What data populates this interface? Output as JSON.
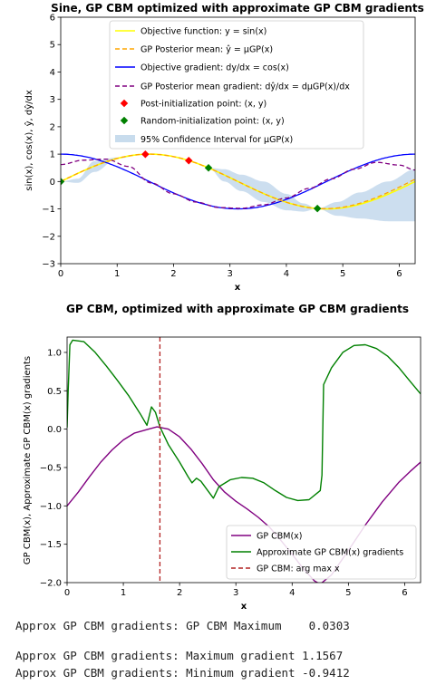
{
  "chart_data": [
    {
      "type": "line",
      "title": "Sine, GP CBM optimized with approximate GP CBM gradients",
      "xlabel": "x",
      "ylabel": "sin(x), cos(x), ŷ, dŷ/dx",
      "xlim": [
        0,
        6.283
      ],
      "ylim": [
        -3,
        6
      ],
      "xticks": [
        "0",
        "1",
        "2",
        "3",
        "4",
        "5",
        "6"
      ],
      "yticks": [
        "−3",
        "−2",
        "−1",
        "0",
        "1",
        "2",
        "3",
        "4",
        "5",
        "6"
      ],
      "legend_position": "top-center",
      "legend": [
        "Objective function: y = sin(x)",
        "GP Posterior mean: ŷ = μGP(x)",
        "Objective gradient: dy/dx = cos(x)",
        "GP Posterior mean gradient: dŷ/dx = dμGP(x)/dx",
        "Post-initialization point: (x, y)",
        "Random-initialization point: (x, y)",
        "95% Confidence Interval for μGP(x)"
      ],
      "post_init_points": [
        [
          1.5,
          0.997
        ],
        [
          2.27,
          0.765
        ]
      ],
      "random_init_points": [
        [
          0.0,
          0.0
        ],
        [
          2.62,
          0.5
        ],
        [
          4.55,
          -0.987
        ]
      ],
      "ci_control": [
        [
          0.0,
          0.0,
          0.0
        ],
        [
          0.3,
          -0.05,
          0.1
        ],
        [
          0.6,
          0.35,
          0.75
        ],
        [
          1.0,
          0.84,
          0.88
        ],
        [
          1.5,
          0.997,
          0.997
        ],
        [
          2.27,
          0.765,
          0.765
        ],
        [
          2.62,
          0.5,
          0.5
        ],
        [
          2.9,
          0.0,
          0.45
        ],
        [
          3.2,
          -0.35,
          0.25
        ],
        [
          3.6,
          -0.75,
          0.0
        ],
        [
          4.0,
          -1.05,
          -0.45
        ],
        [
          4.3,
          -1.1,
          -0.8
        ],
        [
          4.55,
          -0.987,
          -0.987
        ],
        [
          4.9,
          -1.25,
          -0.75
        ],
        [
          5.3,
          -1.35,
          -0.4
        ],
        [
          5.8,
          -1.45,
          0.0
        ],
        [
          6.283,
          -1.45,
          0.45
        ]
      ],
      "gp_mean_gradient_control": [
        [
          0.0,
          0.62
        ],
        [
          0.4,
          0.78
        ],
        [
          0.8,
          0.82
        ],
        [
          1.2,
          0.55
        ],
        [
          1.6,
          -0.05
        ],
        [
          2.0,
          -0.45
        ],
        [
          2.4,
          -0.75
        ],
        [
          2.8,
          -0.95
        ],
        [
          3.2,
          -0.98
        ],
        [
          3.6,
          -0.85
        ],
        [
          4.0,
          -0.6
        ],
        [
          4.4,
          -0.25
        ],
        [
          4.8,
          0.1
        ],
        [
          5.2,
          0.45
        ],
        [
          5.6,
          0.7
        ],
        [
          6.0,
          0.6
        ],
        [
          6.283,
          0.42
        ]
      ]
    },
    {
      "type": "line",
      "title": "GP CBM, optimized with approximate GP CBM gradients",
      "xlabel": "x",
      "ylabel": "GP CBM(x), Approximate GP CBM(x) gradients",
      "xlim": [
        0,
        6.283
      ],
      "ylim": [
        -2.0,
        1.2
      ],
      "xticks": [
        "0",
        "1",
        "2",
        "3",
        "4",
        "5",
        "6"
      ],
      "yticks": [
        "−2.0",
        "−1.5",
        "−1.0",
        "−0.5",
        "0.0",
        "0.5",
        "1.0"
      ],
      "legend_position": "lower-right",
      "legend": [
        "GP CBM(x)",
        "Approximate GP CBM(x) gradients",
        "GP CBM: arg max x"
      ],
      "argmax_x": 1.65,
      "series": [
        {
          "name": "GP CBM(x)",
          "color": "#800080",
          "points": [
            [
              0.0,
              -1.0
            ],
            [
              0.2,
              -0.82
            ],
            [
              0.4,
              -0.62
            ],
            [
              0.6,
              -0.43
            ],
            [
              0.8,
              -0.27
            ],
            [
              1.0,
              -0.14
            ],
            [
              1.2,
              -0.05
            ],
            [
              1.45,
              0.0
            ],
            [
              1.6,
              0.03
            ],
            [
              1.8,
              0.0
            ],
            [
              2.0,
              -0.1
            ],
            [
              2.2,
              -0.26
            ],
            [
              2.4,
              -0.45
            ],
            [
              2.6,
              -0.66
            ],
            [
              2.8,
              -0.82
            ],
            [
              3.0,
              -0.94
            ],
            [
              3.2,
              -1.04
            ],
            [
              3.4,
              -1.15
            ],
            [
              3.6,
              -1.28
            ],
            [
              3.8,
              -1.45
            ],
            [
              4.0,
              -1.63
            ],
            [
              4.2,
              -1.82
            ],
            [
              4.4,
              -1.98
            ],
            [
              4.5,
              -2.02
            ],
            [
              4.7,
              -1.9
            ],
            [
              5.0,
              -1.58
            ],
            [
              5.3,
              -1.25
            ],
            [
              5.6,
              -0.95
            ],
            [
              5.9,
              -0.69
            ],
            [
              6.1,
              -0.55
            ],
            [
              6.283,
              -0.43
            ]
          ]
        },
        {
          "name": "Approximate GP CBM(x) gradients",
          "color": "#008000",
          "points": [
            [
              0.0,
              0.02
            ],
            [
              0.02,
              0.5
            ],
            [
              0.05,
              1.1
            ],
            [
              0.1,
              1.16
            ],
            [
              0.3,
              1.14
            ],
            [
              0.5,
              1.0
            ],
            [
              0.7,
              0.82
            ],
            [
              0.9,
              0.63
            ],
            [
              1.1,
              0.43
            ],
            [
              1.3,
              0.2
            ],
            [
              1.42,
              0.05
            ],
            [
              1.5,
              0.29
            ],
            [
              1.57,
              0.22
            ],
            [
              1.65,
              0.03
            ],
            [
              1.8,
              -0.2
            ],
            [
              2.0,
              -0.43
            ],
            [
              2.15,
              -0.62
            ],
            [
              2.22,
              -0.7
            ],
            [
              2.3,
              -0.64
            ],
            [
              2.38,
              -0.68
            ],
            [
              2.5,
              -0.8
            ],
            [
              2.6,
              -0.9
            ],
            [
              2.7,
              -0.75
            ],
            [
              2.9,
              -0.66
            ],
            [
              3.1,
              -0.63
            ],
            [
              3.3,
              -0.64
            ],
            [
              3.5,
              -0.7
            ],
            [
              3.7,
              -0.8
            ],
            [
              3.9,
              -0.89
            ],
            [
              4.1,
              -0.93
            ],
            [
              4.3,
              -0.92
            ],
            [
              4.45,
              -0.83
            ],
            [
              4.5,
              -0.8
            ],
            [
              4.53,
              -0.6
            ],
            [
              4.56,
              0.58
            ],
            [
              4.7,
              0.8
            ],
            [
              4.9,
              1.0
            ],
            [
              5.1,
              1.09
            ],
            [
              5.3,
              1.1
            ],
            [
              5.5,
              1.05
            ],
            [
              5.7,
              0.95
            ],
            [
              5.9,
              0.8
            ],
            [
              6.1,
              0.62
            ],
            [
              6.283,
              0.46
            ]
          ]
        }
      ]
    }
  ],
  "output_lines": [
    "Approx GP CBM gradients: GP CBM Maximum    0.0303",
    "Approx GP CBM gradients: Maximum gradient 1.1567",
    "Approx GP CBM gradients: Minimum gradient -0.9412"
  ]
}
